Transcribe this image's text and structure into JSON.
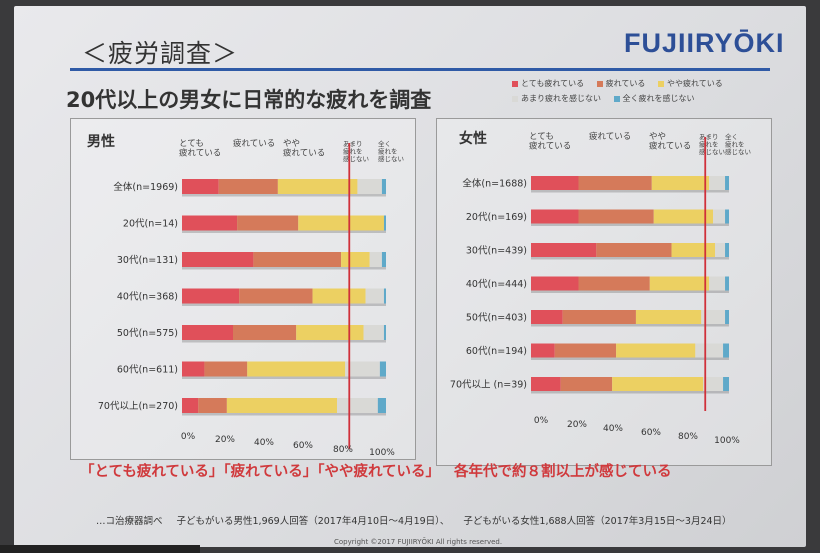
{
  "header": {
    "title": "＜疲労調査＞",
    "brand": "FUJIIRYŌKI"
  },
  "main_title": "20代以上の男女に日常的な疲れを調査",
  "legend": [
    {
      "label": "とても疲れている",
      "color": "#e0505a"
    },
    {
      "label": "疲れている",
      "color": "#d57a5a"
    },
    {
      "label": "やや疲れている",
      "color": "#ecd062"
    },
    {
      "label": "あまり疲れを感じない",
      "color": "#d9d9d6"
    },
    {
      "label": "全く疲れを感じない",
      "color": "#5fa9c9"
    }
  ],
  "chart_data": [
    {
      "type": "bar",
      "orientation": "horizontal-stacked-100",
      "title": "男性",
      "column_headers": [
        "とても\n疲れている",
        "疲れている",
        "やや\n疲れている",
        "あまり\n疲れを\n感じない",
        "全く\n疲れを\n感じない"
      ],
      "categories": [
        "全体(n=1969)",
        "20代(n=14)",
        "30代(n=131)",
        "40代(n=368)",
        "50代(n=575)",
        "60代(n=611)",
        "70代以上(n=270)"
      ],
      "series": [
        {
          "name": "とても疲れている",
          "values": [
            18,
            27,
            35,
            28,
            25,
            11,
            8
          ]
        },
        {
          "name": "疲れている",
          "values": [
            29,
            30,
            43,
            36,
            31,
            21,
            14
          ]
        },
        {
          "name": "やや疲れている",
          "values": [
            39,
            42,
            14,
            26,
            33,
            48,
            54
          ]
        },
        {
          "name": "あまり疲れを感じない",
          "values": [
            12,
            0,
            6,
            9,
            10,
            17,
            20
          ]
        },
        {
          "name": "全く疲れを感じない",
          "values": [
            2,
            1,
            2,
            1,
            1,
            3,
            4
          ]
        }
      ],
      "x_ticks": [
        "0%",
        "20%",
        "40%",
        "60%",
        "80%",
        "100%"
      ],
      "xlim": [
        0,
        100
      ],
      "reference_line": 82
    },
    {
      "type": "bar",
      "orientation": "horizontal-stacked-100",
      "title": "女性",
      "column_headers": [
        "とても\n疲れている",
        "疲れている",
        "やや\n疲れている",
        "あまり\n疲れを\n感じない",
        "全く\n疲れを\n感じない"
      ],
      "categories": [
        "全体(n=1688)",
        "20代(n=169)",
        "30代(n=439)",
        "40代(n=444)",
        "50代(n=403)",
        "60代(n=194)",
        "70代以上 (n=39)"
      ],
      "series": [
        {
          "name": "とても疲れている",
          "values": [
            24,
            24,
            33,
            24,
            16,
            12,
            15
          ]
        },
        {
          "name": "疲れている",
          "values": [
            37,
            38,
            38,
            36,
            37,
            31,
            26
          ]
        },
        {
          "name": "やや疲れている",
          "values": [
            29,
            30,
            22,
            30,
            33,
            40,
            46
          ]
        },
        {
          "name": "あまり疲れを感じない",
          "values": [
            8,
            6,
            5,
            8,
            12,
            14,
            10
          ]
        },
        {
          "name": "全く疲れを感じない",
          "values": [
            2,
            2,
            2,
            2,
            2,
            3,
            3
          ]
        }
      ],
      "x_ticks": [
        "0%",
        "20%",
        "40%",
        "60%",
        "80%",
        "100%"
      ],
      "xlim": [
        0,
        100
      ],
      "reference_line": 88
    }
  ],
  "conclusion": {
    "part1": "「とても疲れている」「疲れている」「やや疲れている」",
    "part2": "各年代で約８割以上が感じている"
  },
  "source": {
    "org": "…コ治療器調べ",
    "male": "子どもがいる男性1,969人回答（2017年4月10日～4月19日）、",
    "female": "子どもがいる女性1,688人回答（2017年3月15日～3月24日）"
  },
  "copyright": "Copyright ©2017 FUJIIRYŌKI All rights reserved."
}
